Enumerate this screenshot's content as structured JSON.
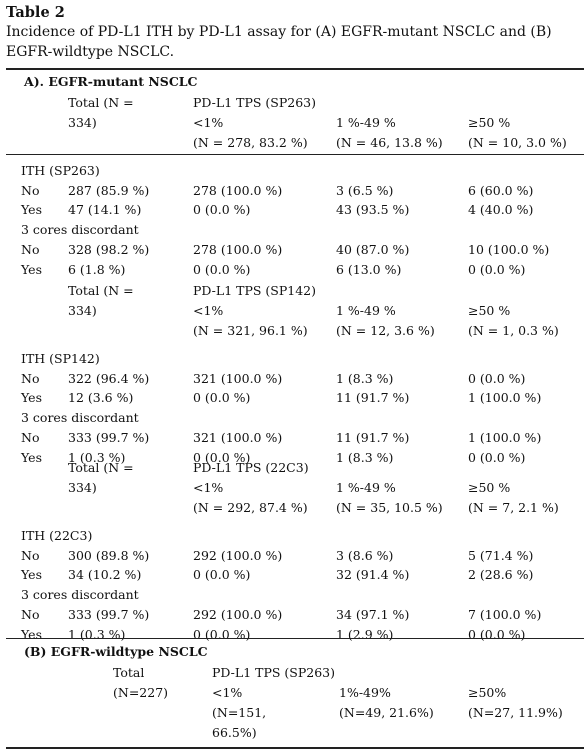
{
  "title": "Table 2",
  "caption": "Incidence of PD-L1 ITH by PD-L1 assay for (A) EGFR-mutant NSCLC and (B) EGFR-wildtype NSCLC.",
  "sectionA": {
    "heading": "A). EGFR-mutant NSCLC",
    "assays": [
      {
        "total_label": [
          "Total (N =",
          "334)"
        ],
        "tps_label": "PD-L1 TPS (SP263)",
        "cols": [
          {
            "label": "<1%",
            "n": "(N = 278, 83.2 %)"
          },
          {
            "label": "1 %-49 %",
            "n": "(N = 46, 13.8 %)"
          },
          {
            "label": "≥50 %",
            "n": "(N = 10, 3.0 %)"
          }
        ],
        "ith_label": "ITH (SP263)",
        "ith_rows": [
          {
            "label": "No",
            "total": "287 (85.9 %)",
            "c1": "278 (100.0 %)",
            "c2": "3 (6.5 %)",
            "c3": "6 (60.0 %)"
          },
          {
            "label": "Yes",
            "total": "47 (14.1 %)",
            "c1": "0 (0.0 %)",
            "c2": "43 (93.5 %)",
            "c3": "4 (40.0 %)"
          }
        ],
        "disc_label": "3 cores discordant",
        "disc_rows": [
          {
            "label": "No",
            "total": "328 (98.2 %)",
            "c1": "278 (100.0 %)",
            "c2": "40 (87.0 %)",
            "c3": "10 (100.0 %)"
          },
          {
            "label": "Yes",
            "total": "6 (1.8 %)",
            "c1": "0 (0.0 %)",
            "c2": "6 (13.0 %)",
            "c3": "0 (0.0 %)"
          }
        ]
      },
      {
        "total_label": [
          "Total (N =",
          "334)"
        ],
        "tps_label": "PD-L1 TPS (SP142)",
        "cols": [
          {
            "label": "<1%",
            "n": "(N = 321, 96.1 %)"
          },
          {
            "label": "1 %-49 %",
            "n": "(N = 12, 3.6 %)"
          },
          {
            "label": "≥50 %",
            "n": "(N = 1, 0.3 %)"
          }
        ],
        "ith_label": "ITH (SP142)",
        "ith_rows": [
          {
            "label": "No",
            "total": "322 (96.4 %)",
            "c1": "321 (100.0 %)",
            "c2": "1 (8.3 %)",
            "c3": "0 (0.0 %)"
          },
          {
            "label": "Yes",
            "total": "12 (3.6 %)",
            "c1": "0 (0.0 %)",
            "c2": "11 (91.7 %)",
            "c3": "1 (100.0 %)"
          }
        ],
        "disc_label": "3 cores discordant",
        "disc_rows": [
          {
            "label": "No",
            "total": "333 (99.7 %)",
            "c1": "321 (100.0 %)",
            "c2": "11 (91.7 %)",
            "c3": "1 (100.0 %)"
          },
          {
            "label": "Yes",
            "total": "1 (0.3 %)",
            "c1": "0 (0.0 %)",
            "c2": "1 (8.3 %)",
            "c3": "0 (0.0 %)"
          }
        ]
      },
      {
        "total_label": [
          "Total (N =",
          "334)"
        ],
        "tps_label": "PD-L1 TPS (22C3)",
        "cols": [
          {
            "label": "<1%",
            "n": "(N = 292, 87.4 %)"
          },
          {
            "label": "1 %-49 %",
            "n": "(N = 35, 10.5 %)"
          },
          {
            "label": "≥50 %",
            "n": "(N = 7, 2.1 %)"
          }
        ],
        "ith_label": "ITH (22C3)",
        "ith_rows": [
          {
            "label": "No",
            "total": "300 (89.8 %)",
            "c1": "292 (100.0 %)",
            "c2": "3 (8.6 %)",
            "c3": "5 (71.4 %)"
          },
          {
            "label": "Yes",
            "total": "34 (10.2 %)",
            "c1": "0 (0.0 %)",
            "c2": "32 (91.4 %)",
            "c3": "2 (28.6 %)"
          }
        ],
        "disc_label": "3 cores discordant",
        "disc_rows": [
          {
            "label": "No",
            "total": "333 (99.7 %)",
            "c1": "292 (100.0 %)",
            "c2": "34 (97.1 %)",
            "c3": "7 (100.0 %)"
          },
          {
            "label": "Yes",
            "total": "1 (0.3 %)",
            "c1": "0 (0.0 %)",
            "c2": "1 (2.9 %)",
            "c3": "0 (0.0 %)"
          }
        ]
      }
    ]
  },
  "sectionB": {
    "heading": "(B) EGFR-wildtype NSCLC",
    "total_label": [
      "Total",
      "(N=227)"
    ],
    "tps_label": "PD-L1 TPS (SP263)",
    "c1_label": "<1%",
    "c1_n": [
      "(N=151,",
      "66.5%)"
    ],
    "c2_label": "1%-49%",
    "c2_n": "(N=49, 21.6%)",
    "c3_label": "≥50%",
    "c3_n": "(N=27, 11.9%)"
  }
}
